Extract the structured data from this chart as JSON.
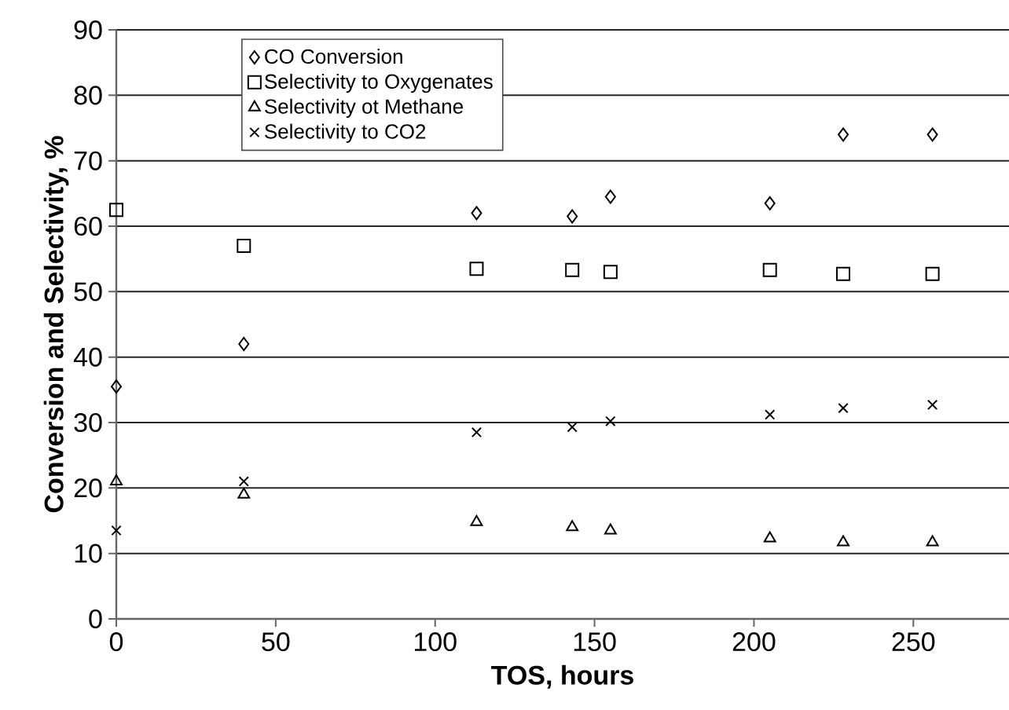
{
  "chart_data": {
    "type": "scatter",
    "xlabel": "TOS, hours",
    "ylabel": "Conversion and Selectivity, %",
    "x": [
      0,
      40,
      113,
      143,
      155,
      205,
      228,
      256
    ],
    "series": [
      {
        "name": "CO Conversion",
        "color": "#000000",
        "marker": "diamond",
        "values": [
          35.5,
          42,
          62,
          61.5,
          64.5,
          63.5,
          74,
          74
        ]
      },
      {
        "name": "Selectivity to Oxygenates",
        "color": "#000000",
        "marker": "square",
        "values": [
          62.5,
          57,
          53.5,
          53.3,
          53,
          53.3,
          52.7,
          52.7
        ]
      },
      {
        "name": "Selectivity ot Methane",
        "color": "#000000",
        "marker": "triangle",
        "values": [
          21,
          19,
          14.8,
          14,
          13.5,
          12.3,
          11.7,
          11.7
        ]
      },
      {
        "name": "Selectivity to CO2",
        "color": "#000000",
        "marker": "cross",
        "values": [
          13.5,
          21,
          28.5,
          29.3,
          30.2,
          31.2,
          32.2,
          32.7
        ]
      }
    ],
    "xlim": [
      0,
      280
    ],
    "ylim": [
      0,
      90
    ],
    "xticks": [
      0,
      50,
      100,
      150,
      200,
      250
    ],
    "yticks": [
      0,
      10,
      20,
      30,
      40,
      50,
      60,
      70,
      80,
      90
    ],
    "grid": "y",
    "legend": "top left"
  }
}
